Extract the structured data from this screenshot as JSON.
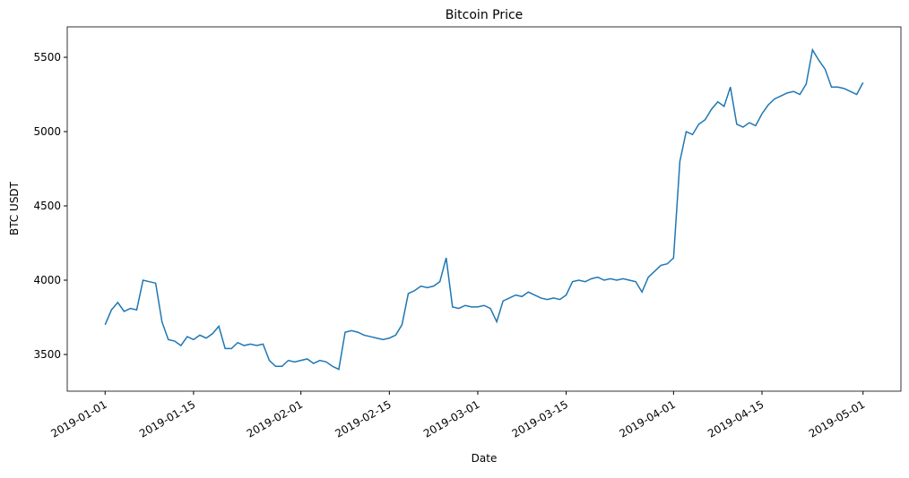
{
  "chart_data": {
    "type": "line",
    "title": "Bitcoin Price",
    "x_label": "Date",
    "y_label": "BTC USDT",
    "x": [
      "2019-01-01",
      "2019-01-02",
      "2019-01-03",
      "2019-01-04",
      "2019-01-05",
      "2019-01-06",
      "2019-01-07",
      "2019-01-08",
      "2019-01-09",
      "2019-01-10",
      "2019-01-11",
      "2019-01-12",
      "2019-01-13",
      "2019-01-14",
      "2019-01-15",
      "2019-01-16",
      "2019-01-17",
      "2019-01-18",
      "2019-01-19",
      "2019-01-20",
      "2019-01-21",
      "2019-01-22",
      "2019-01-23",
      "2019-01-24",
      "2019-01-25",
      "2019-01-26",
      "2019-01-27",
      "2019-01-28",
      "2019-01-29",
      "2019-01-30",
      "2019-01-31",
      "2019-02-01",
      "2019-02-02",
      "2019-02-03",
      "2019-02-04",
      "2019-02-05",
      "2019-02-06",
      "2019-02-07",
      "2019-02-08",
      "2019-02-09",
      "2019-02-10",
      "2019-02-11",
      "2019-02-12",
      "2019-02-13",
      "2019-02-14",
      "2019-02-15",
      "2019-02-16",
      "2019-02-17",
      "2019-02-18",
      "2019-02-19",
      "2019-02-20",
      "2019-02-21",
      "2019-02-22",
      "2019-02-23",
      "2019-02-24",
      "2019-02-25",
      "2019-02-26",
      "2019-02-27",
      "2019-02-28",
      "2019-03-01",
      "2019-03-02",
      "2019-03-03",
      "2019-03-04",
      "2019-03-05",
      "2019-03-06",
      "2019-03-07",
      "2019-03-08",
      "2019-03-09",
      "2019-03-10",
      "2019-03-11",
      "2019-03-12",
      "2019-03-13",
      "2019-03-14",
      "2019-03-15",
      "2019-03-16",
      "2019-03-17",
      "2019-03-18",
      "2019-03-19",
      "2019-03-20",
      "2019-03-21",
      "2019-03-22",
      "2019-03-23",
      "2019-03-24",
      "2019-03-25",
      "2019-03-26",
      "2019-03-27",
      "2019-03-28",
      "2019-03-29",
      "2019-03-30",
      "2019-03-31",
      "2019-04-01",
      "2019-04-02",
      "2019-04-03",
      "2019-04-04",
      "2019-04-05",
      "2019-04-06",
      "2019-04-07",
      "2019-04-08",
      "2019-04-09",
      "2019-04-10",
      "2019-04-11",
      "2019-04-12",
      "2019-04-13",
      "2019-04-14",
      "2019-04-15",
      "2019-04-16",
      "2019-04-17",
      "2019-04-18",
      "2019-04-19",
      "2019-04-20",
      "2019-04-21",
      "2019-04-22",
      "2019-04-23",
      "2019-04-24",
      "2019-04-25",
      "2019-04-26",
      "2019-04-27",
      "2019-04-28",
      "2019-04-29",
      "2019-04-30",
      "2019-05-01"
    ],
    "series": [
      {
        "color": "#1f77b4",
        "values": [
          3700,
          3800,
          3850,
          3790,
          3810,
          3800,
          4000,
          3990,
          3980,
          3720,
          3600,
          3590,
          3560,
          3620,
          3600,
          3630,
          3610,
          3640,
          3690,
          3540,
          3540,
          3580,
          3560,
          3570,
          3560,
          3570,
          3460,
          3420,
          3420,
          3460,
          3450,
          3460,
          3470,
          3440,
          3460,
          3450,
          3420,
          3400,
          3650,
          3660,
          3650,
          3630,
          3620,
          3610,
          3600,
          3610,
          3630,
          3700,
          3910,
          3930,
          3960,
          3950,
          3960,
          3990,
          4150,
          3820,
          3810,
          3830,
          3820,
          3820,
          3830,
          3810,
          3720,
          3860,
          3880,
          3900,
          3890,
          3920,
          3900,
          3880,
          3870,
          3880,
          3870,
          3900,
          3990,
          4000,
          3990,
          4010,
          4020,
          4000,
          4010,
          4000,
          4010,
          4000,
          3990,
          3920,
          4020,
          4060,
          4100,
          4110,
          4150,
          4800,
          5000,
          4980,
          5050,
          5080,
          5150,
          5200,
          5170,
          5300,
          5050,
          5030,
          5060,
          5040,
          5120,
          5180,
          5220,
          5240,
          5260,
          5270,
          5250,
          5320,
          5550,
          5480,
          5420,
          5300,
          5300,
          5290,
          5270,
          5250,
          5330
        ]
      }
    ],
    "xlim": [
      "2018-12-26",
      "2019-05-07"
    ],
    "xticks": [
      "2019-01-01",
      "2019-01-15",
      "2019-02-01",
      "2019-02-15",
      "2019-03-01",
      "2019-03-15",
      "2019-04-01",
      "2019-04-15",
      "2019-05-01"
    ],
    "ylim": [
      3253,
      5705
    ],
    "yticks": [
      3500,
      4000,
      4500,
      5000,
      5500
    ]
  }
}
